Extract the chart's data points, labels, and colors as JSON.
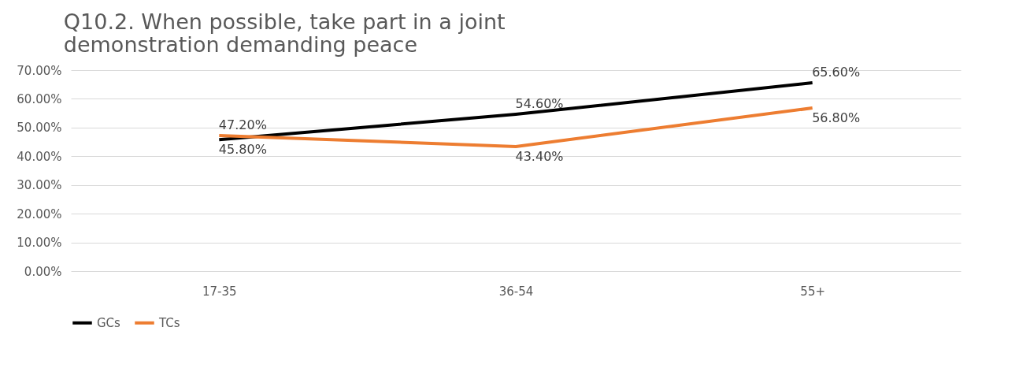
{
  "chart_data": {
    "type": "line",
    "title": [
      "Q10.2. When possible, take part in a joint",
      "demonstration demanding peace"
    ],
    "categories": [
      "17-35",
      "36-54",
      "55+"
    ],
    "series": [
      {
        "name": "GCs",
        "color": "#000000",
        "values": [
          45.8,
          54.6,
          65.6
        ],
        "value_labels": [
          "45.80%",
          "54.60%",
          "65.60%"
        ]
      },
      {
        "name": "TCs",
        "color": "#ed7d31",
        "values": [
          47.2,
          43.4,
          56.8
        ],
        "value_labels": [
          "47.20%",
          "43.40%",
          "56.80%"
        ]
      }
    ],
    "ylim": [
      0,
      70
    ],
    "yticks": [
      {
        "value": 0,
        "label": "0.00%"
      },
      {
        "value": 10,
        "label": "10.00%"
      },
      {
        "value": 20,
        "label": "20.00%"
      },
      {
        "value": 30,
        "label": "30.00%"
      },
      {
        "value": 40,
        "label": "40.00%"
      },
      {
        "value": 50,
        "label": "50.00%"
      },
      {
        "value": 60,
        "label": "60.00%"
      },
      {
        "value": 70,
        "label": "70.00%"
      }
    ],
    "grid": "y",
    "legend": "bottom",
    "marker": "none",
    "line_style": "solid"
  }
}
